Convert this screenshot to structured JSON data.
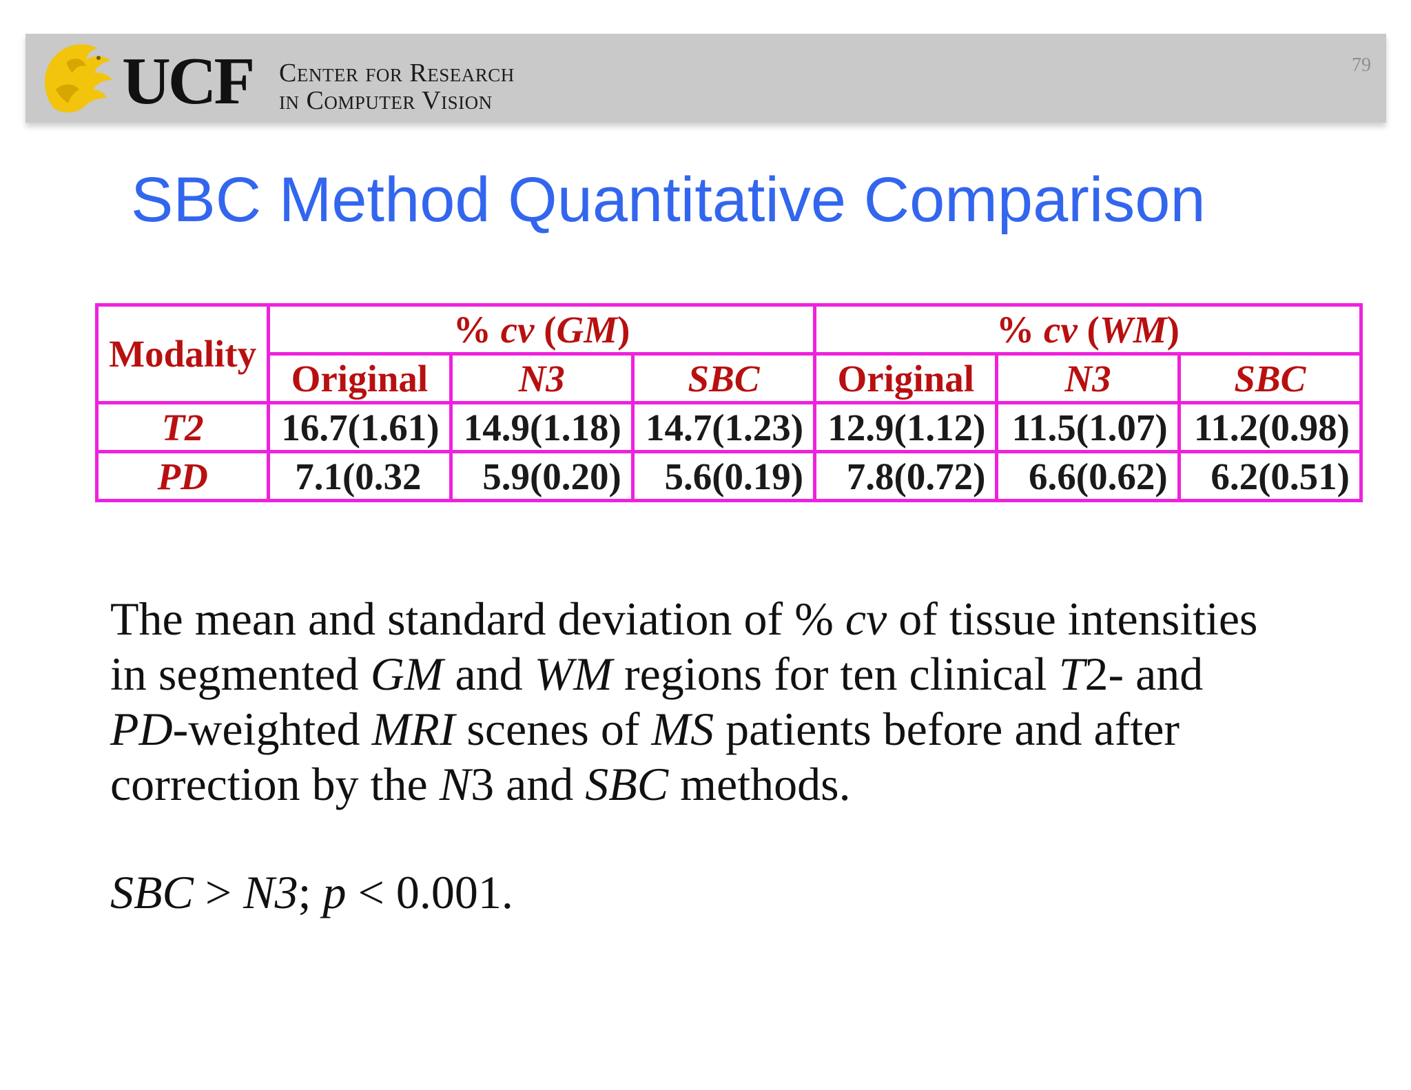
{
  "header": {
    "logo_text": "UCF",
    "tagline_line1": "Center for Research",
    "tagline_line2": "in Computer Vision",
    "page_number": "79"
  },
  "title": "SBC Method Quantitative Comparison",
  "table": {
    "modality_header": "Modality",
    "groups": [
      {
        "pre": "% ",
        "cv": "cv",
        "mid": " (",
        "tissue": "GM",
        "post": ")"
      },
      {
        "pre": "% ",
        "cv": "cv",
        "mid": " (",
        "tissue": "WM",
        "post": ")"
      }
    ],
    "subheaders": [
      "Original",
      "N3",
      "SBC",
      "Original",
      "N3",
      "SBC"
    ],
    "rows": [
      {
        "label": "T2",
        "cells": [
          "16.7(1.61)",
          "14.9(1.18)",
          "14.7(1.23)",
          "12.9(1.12)",
          "11.5(1.07)",
          "11.2(0.98)"
        ]
      },
      {
        "label": "PD",
        "cells": [
          "7.1(0.32",
          "5.9(0.20)",
          "5.6(0.19)",
          "7.8(0.72)",
          "6.6(0.62)",
          "6.2(0.51)"
        ]
      }
    ]
  },
  "caption": {
    "l1_a": "The mean and standard deviation of % ",
    "l1_b": "cv",
    "l1_c": " of tissue intensities",
    "l2_a": "in segmented ",
    "l2_b": "GM",
    "l2_c": " and ",
    "l2_d": "WM",
    "l2_e": " regions for ten clinical ",
    "l2_f": "T",
    "l2_g": "2- and",
    "l3_a": "PD",
    "l3_b": "-weighted ",
    "l3_c": "MRI",
    "l3_d": " scenes of ",
    "l3_e": "MS",
    "l3_f": " patients before and after",
    "l4_a": "correction by the ",
    "l4_b": "N",
    "l4_c": "3 and ",
    "l4_d": "SBC",
    "l4_e": " methods."
  },
  "conclusion": {
    "a": "SBC",
    "b": " > ",
    "c": "N3",
    "d": "; ",
    "e": "p",
    "f": " < 0.001."
  },
  "colors": {
    "title": "#3366ee",
    "table_border": "#ee22dd",
    "header_text": "#b81010",
    "banner": "#c9c9c9",
    "logo_gold": "#f2c40c"
  }
}
